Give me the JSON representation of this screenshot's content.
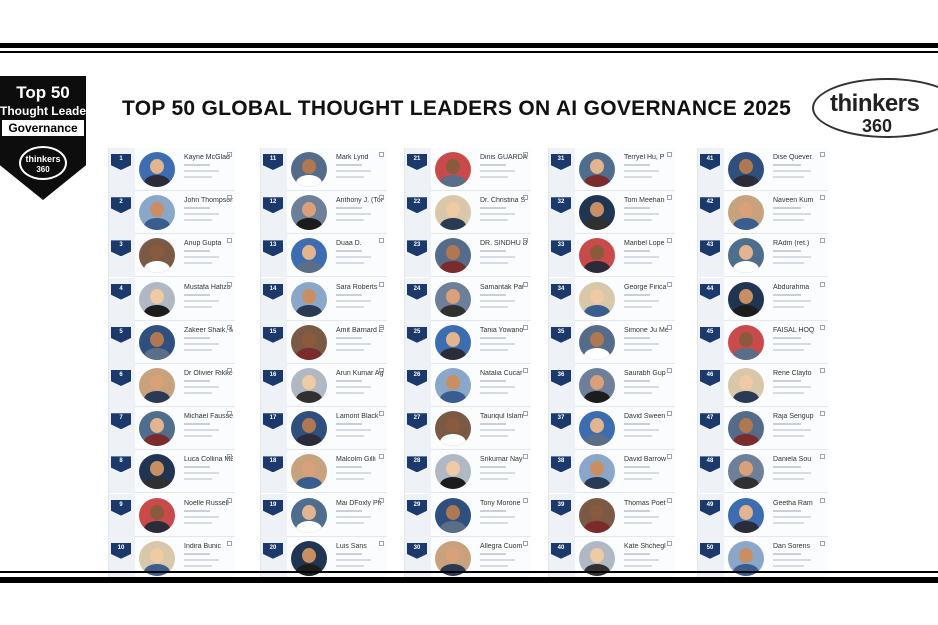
{
  "badge": {
    "line1": "Top 50",
    "line2": "Thought Leader",
    "line3": "Governance",
    "seal_word": "thinkers",
    "seal_num": "360"
  },
  "headline": "TOP 50 GLOBAL THOUGHT LEADERS ON AI GOVERNANCE 2025",
  "logo": {
    "word": "thinkers",
    "num": "360"
  },
  "colors": {
    "rank_flag": "#1b3a6b",
    "rule": "#000000"
  },
  "leaders": [
    {
      "rank": "1",
      "name": "Kayne McGlad"
    },
    {
      "rank": "2",
      "name": "John Thompson"
    },
    {
      "rank": "3",
      "name": "Anup Gupta"
    },
    {
      "rank": "4",
      "name": "Mustafa Hafizo"
    },
    {
      "rank": "5",
      "name": "Zakeer Shaik, M"
    },
    {
      "rank": "6",
      "name": "Dr Olivier Rikke"
    },
    {
      "rank": "7",
      "name": "Michael Fausse"
    },
    {
      "rank": "8",
      "name": "Luca Collina ME"
    },
    {
      "rank": "9",
      "name": "Noelle Russell"
    },
    {
      "rank": "10",
      "name": "Indira Bunic"
    },
    {
      "rank": "11",
      "name": "Mark Lynd"
    },
    {
      "rank": "12",
      "name": "Anthony J. (Tor"
    },
    {
      "rank": "13",
      "name": "Duaa D."
    },
    {
      "rank": "14",
      "name": "Sara Roberts"
    },
    {
      "rank": "15",
      "name": "Amit Barnard E"
    },
    {
      "rank": "16",
      "name": "Arun Kumar Ag"
    },
    {
      "rank": "17",
      "name": "Lamont Black"
    },
    {
      "rank": "18",
      "name": "Malcolm Gilli"
    },
    {
      "rank": "19",
      "name": "Mai DFoxly Ph"
    },
    {
      "rank": "20",
      "name": "Luis Sans"
    },
    {
      "rank": "21",
      "name": "Dinis GUARDA"
    },
    {
      "rank": "22",
      "name": "Dr. Christina S"
    },
    {
      "rank": "23",
      "name": "DR. SINDHU B"
    },
    {
      "rank": "24",
      "name": "Samantak Par"
    },
    {
      "rank": "25",
      "name": "Tania Yowano"
    },
    {
      "rank": "26",
      "name": "Natalia Cucar"
    },
    {
      "rank": "27",
      "name": "Tauriqul Islam"
    },
    {
      "rank": "28",
      "name": "Srikumar Nay"
    },
    {
      "rank": "29",
      "name": "Tony Morone"
    },
    {
      "rank": "30",
      "name": "Allegra Cuom"
    },
    {
      "rank": "31",
      "name": "Terryel Hu, P"
    },
    {
      "rank": "32",
      "name": "Tom Meehan"
    },
    {
      "rank": "33",
      "name": "Maribel Lope"
    },
    {
      "rank": "34",
      "name": "George Firica"
    },
    {
      "rank": "35",
      "name": "Simone Ju Me"
    },
    {
      "rank": "36",
      "name": "Saurabh Gup"
    },
    {
      "rank": "37",
      "name": "David Sween"
    },
    {
      "rank": "38",
      "name": "David Barrow"
    },
    {
      "rank": "39",
      "name": "Thomas Poet"
    },
    {
      "rank": "40",
      "name": "Kate Shchegl"
    },
    {
      "rank": "41",
      "name": "Dise Quever"
    },
    {
      "rank": "42",
      "name": "Naveen Kum"
    },
    {
      "rank": "43",
      "name": "RAdm (ret.)"
    },
    {
      "rank": "44",
      "name": "Abdurahma"
    },
    {
      "rank": "45",
      "name": "FAISAL HOQ"
    },
    {
      "rank": "46",
      "name": "Rene Clayto"
    },
    {
      "rank": "47",
      "name": "Raja Sengup"
    },
    {
      "rank": "48",
      "name": "Daniela Sou"
    },
    {
      "rank": "49",
      "name": "Geetha Ram"
    },
    {
      "rank": "50",
      "name": "Dan Sorens"
    }
  ]
}
